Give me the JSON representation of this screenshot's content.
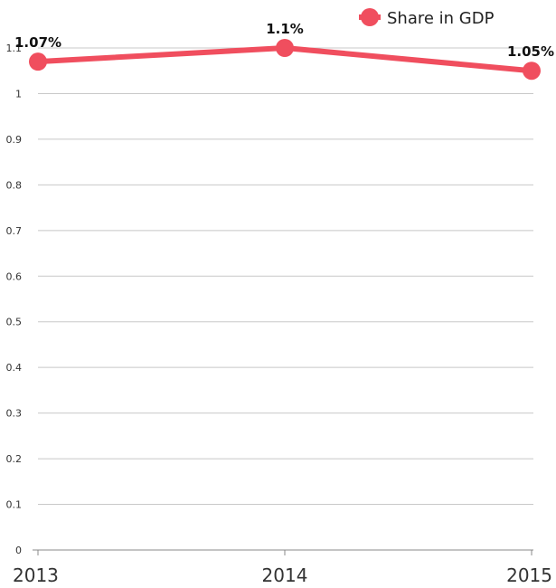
{
  "chart_data": {
    "type": "line",
    "categories": [
      "2013",
      "2014",
      "2015"
    ],
    "series": [
      {
        "name": "Share in GDP",
        "values": [
          1.07,
          1.1,
          1.05
        ],
        "labels": [
          "1.07%",
          "1.1%",
          "1.05%"
        ]
      }
    ],
    "title": "",
    "xlabel": "",
    "ylabel": "",
    "ylim": [
      0,
      1.1
    ],
    "yticks": [
      "0",
      "0.1",
      "0.2",
      "0.3",
      "0.4",
      "0.5",
      "0.6",
      "0.7",
      "0.8",
      "0.9",
      "1",
      "1.1"
    ],
    "grid": true,
    "legend_position": "top-right",
    "color": "#f04e5e"
  }
}
